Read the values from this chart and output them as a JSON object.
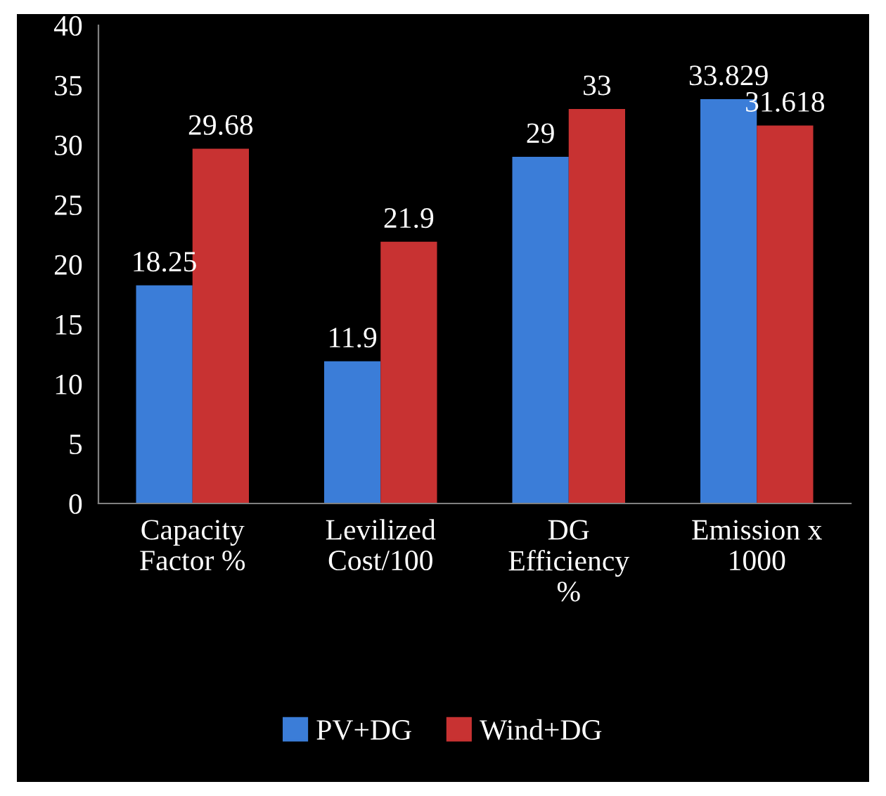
{
  "chart_data": {
    "type": "bar",
    "categories": [
      "Capacity\nFactor %",
      "Levilized\nCost/100",
      "DG\nEfficiency\n%",
      "Emission x\n1000"
    ],
    "series": [
      {
        "name": "PV+DG",
        "color": "#3b7dd8",
        "values": [
          18.25,
          11.9,
          29,
          33.829
        ]
      },
      {
        "name": "Wind+DG",
        "color": "#c83232",
        "values": [
          29.68,
          21.9,
          33,
          31.618
        ]
      }
    ],
    "ylim": [
      0,
      40
    ],
    "yticks": [
      0,
      5,
      10,
      15,
      20,
      25,
      30,
      35,
      40
    ],
    "data_labels": true,
    "grid": false,
    "legend": "bottom"
  }
}
